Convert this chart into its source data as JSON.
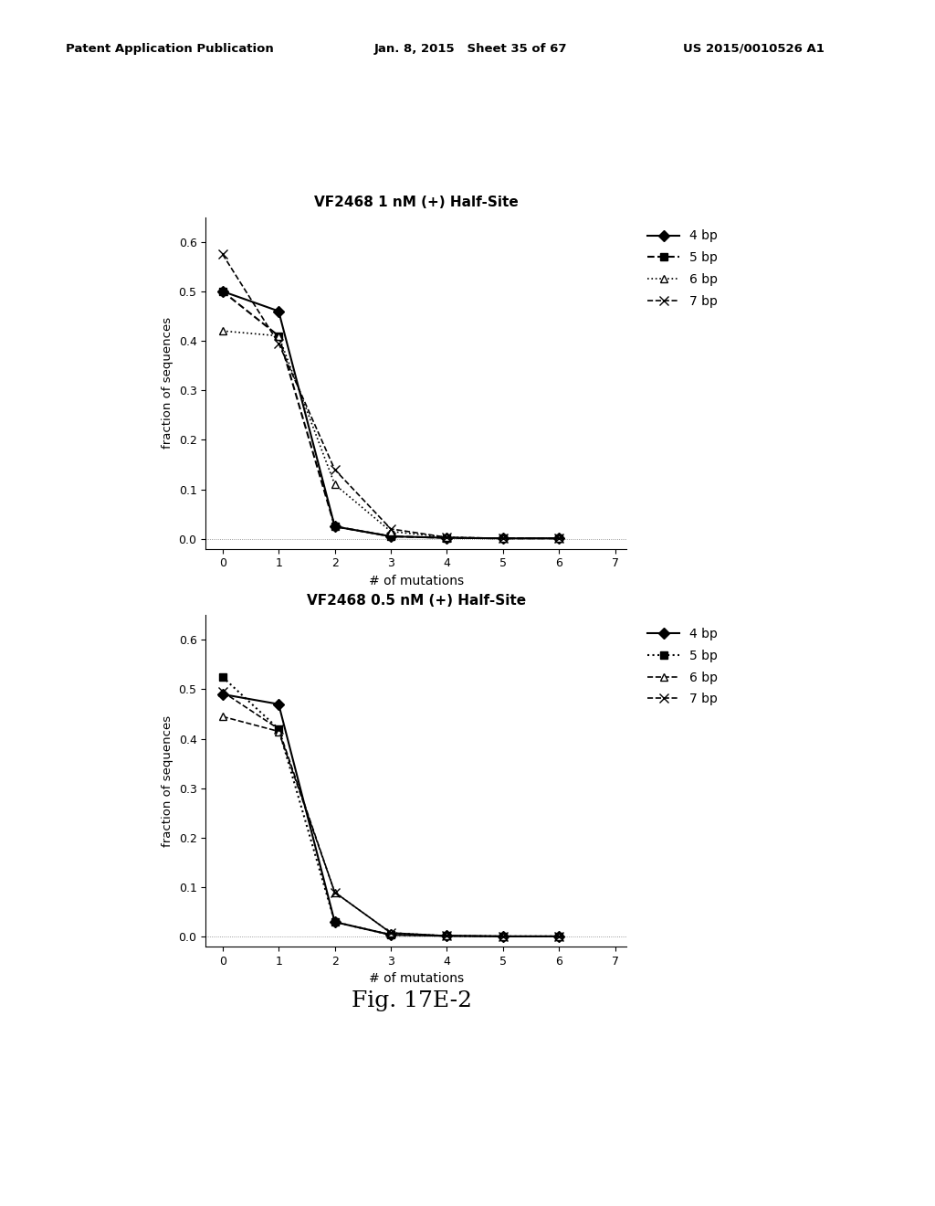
{
  "top_chart": {
    "title": "VF2468 1 nM (+) Half-Site",
    "series": [
      {
        "label": "4 bp",
        "x": [
          0,
          1,
          2,
          3,
          4,
          5,
          6
        ],
        "y": [
          0.5,
          0.46,
          0.025,
          0.005,
          0.002,
          0.001,
          0.001
        ],
        "linestyle": "-",
        "marker": "D",
        "color": "#000000",
        "markersize": 6,
        "markerfacecolor": "#000000",
        "linewidth": 1.5
      },
      {
        "label": "5 bp",
        "x": [
          0,
          1,
          2,
          3,
          4,
          5,
          6
        ],
        "y": [
          0.5,
          0.41,
          0.025,
          0.005,
          0.002,
          0.001,
          0.001
        ],
        "linestyle": "--",
        "marker": "s",
        "color": "#000000",
        "markersize": 6,
        "markerfacecolor": "#000000",
        "linewidth": 1.5
      },
      {
        "label": "6 bp",
        "x": [
          0,
          1,
          2,
          3,
          4,
          5,
          6
        ],
        "y": [
          0.42,
          0.41,
          0.11,
          0.015,
          0.003,
          0.001,
          0.001
        ],
        "linestyle": ":",
        "marker": "^",
        "color": "#000000",
        "markersize": 6,
        "markerfacecolor": "white",
        "linewidth": 1.2
      },
      {
        "label": "7 bp",
        "x": [
          0,
          1,
          2,
          3,
          4,
          5,
          6
        ],
        "y": [
          0.575,
          0.395,
          0.14,
          0.02,
          0.003,
          0.001,
          0.001
        ],
        "linestyle": "--",
        "marker": "x",
        "color": "#000000",
        "markersize": 7,
        "markerfacecolor": "#000000",
        "linewidth": 1.2
      }
    ]
  },
  "bottom_chart": {
    "title": "VF2468 0.5 nM (+) Half-Site",
    "series": [
      {
        "label": "4 bp",
        "x": [
          0,
          1,
          2,
          3,
          4,
          5,
          6
        ],
        "y": [
          0.49,
          0.47,
          0.03,
          0.004,
          0.002,
          0.001,
          0.001
        ],
        "linestyle": "-",
        "marker": "D",
        "color": "#000000",
        "markersize": 6,
        "markerfacecolor": "#000000",
        "linewidth": 1.5
      },
      {
        "label": "5 bp",
        "x": [
          0,
          1,
          2,
          3,
          4,
          5,
          6
        ],
        "y": [
          0.525,
          0.42,
          0.03,
          0.004,
          0.002,
          0.001,
          0.001
        ],
        "linestyle": ":",
        "marker": "s",
        "color": "#000000",
        "markersize": 6,
        "markerfacecolor": "#000000",
        "linewidth": 1.5
      },
      {
        "label": "6 bp",
        "x": [
          0,
          1,
          2,
          3,
          4,
          5,
          6
        ],
        "y": [
          0.445,
          0.415,
          0.09,
          0.008,
          0.002,
          0.001,
          0.001
        ],
        "linestyle": "--",
        "marker": "^",
        "color": "#000000",
        "markersize": 6,
        "markerfacecolor": "white",
        "linewidth": 1.2
      },
      {
        "label": "7 bp",
        "x": [
          0,
          1,
          2,
          3,
          4,
          5,
          6
        ],
        "y": [
          0.495,
          0.42,
          0.09,
          0.008,
          0.002,
          0.001,
          0.001
        ],
        "linestyle": "--",
        "marker": "x",
        "color": "#000000",
        "markersize": 7,
        "markerfacecolor": "#000000",
        "linewidth": 1.2
      }
    ]
  },
  "xlabel": "# of mutations",
  "ylabel": "fraction of sequences",
  "xlim": [
    -0.3,
    7.2
  ],
  "ylim": [
    -0.02,
    0.65
  ],
  "yticks": [
    0.0,
    0.1,
    0.2,
    0.3,
    0.4,
    0.5,
    0.6
  ],
  "xticks": [
    0,
    1,
    2,
    3,
    4,
    5,
    6,
    7
  ],
  "fig_caption": "Fig. 17E-2",
  "background_color": "#ffffff",
  "header_text": [
    "Patent Application Publication",
    "Jan. 8, 2015   Sheet 35 of 67",
    "US 2015/0010526 A1"
  ]
}
